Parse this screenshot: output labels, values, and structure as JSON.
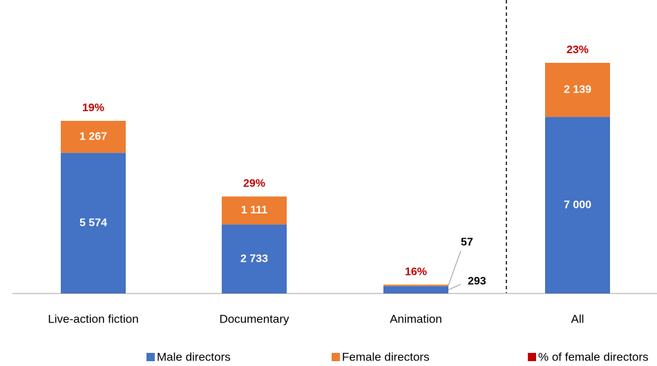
{
  "chart_data": {
    "type": "bar",
    "stacked": true,
    "categories": [
      "Live-action fiction",
      "Documentary",
      "Animation",
      "All"
    ],
    "series": [
      {
        "name": "Male directors",
        "color": "#4472c4",
        "values": [
          5574,
          2733,
          293,
          7000
        ],
        "value_labels": [
          "5 574",
          "2 733",
          "293",
          "7 000"
        ]
      },
      {
        "name": "Female directors",
        "color": "#ed7d31",
        "values": [
          1267,
          1111,
          57,
          2139
        ],
        "value_labels": [
          "1 267",
          "1 111",
          "57",
          "2 139"
        ]
      },
      {
        "name": "% of female directors",
        "color": "#c00000",
        "values": [
          19,
          29,
          16,
          23
        ],
        "value_labels": [
          "19%",
          "29%",
          "16%",
          "23%"
        ]
      }
    ]
  }
}
